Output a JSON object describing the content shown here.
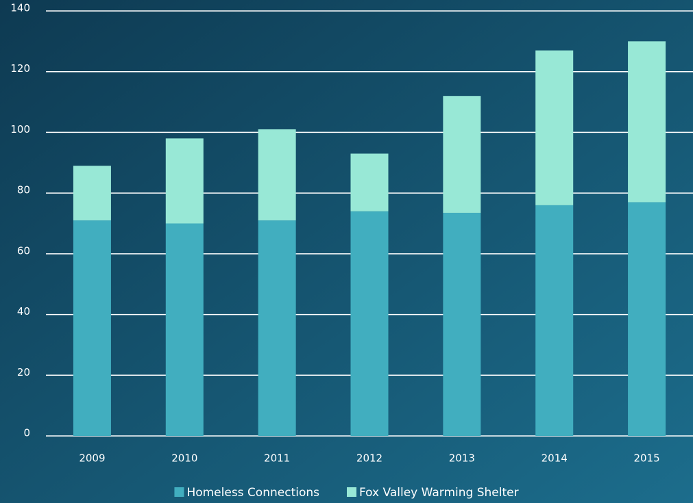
{
  "chart_data": {
    "type": "stacked_bar",
    "categories": [
      "2009",
      "2010",
      "2011",
      "2012",
      "2013",
      "2014",
      "2015"
    ],
    "series": [
      {
        "name": "Homeless Connections",
        "color": "#41aebf",
        "values": [
          71,
          70,
          71,
          74,
          73.5,
          76,
          77
        ]
      },
      {
        "name": "Fox Valley Warming Shelter",
        "color": "#98e8d6",
        "values": [
          18,
          28,
          30,
          19,
          38.5,
          51,
          53
        ]
      }
    ],
    "ylim": [
      0,
      140
    ],
    "yticks": [
      0,
      20,
      40,
      60,
      80,
      100,
      120,
      140
    ],
    "grid": true,
    "legend": "bottom"
  }
}
